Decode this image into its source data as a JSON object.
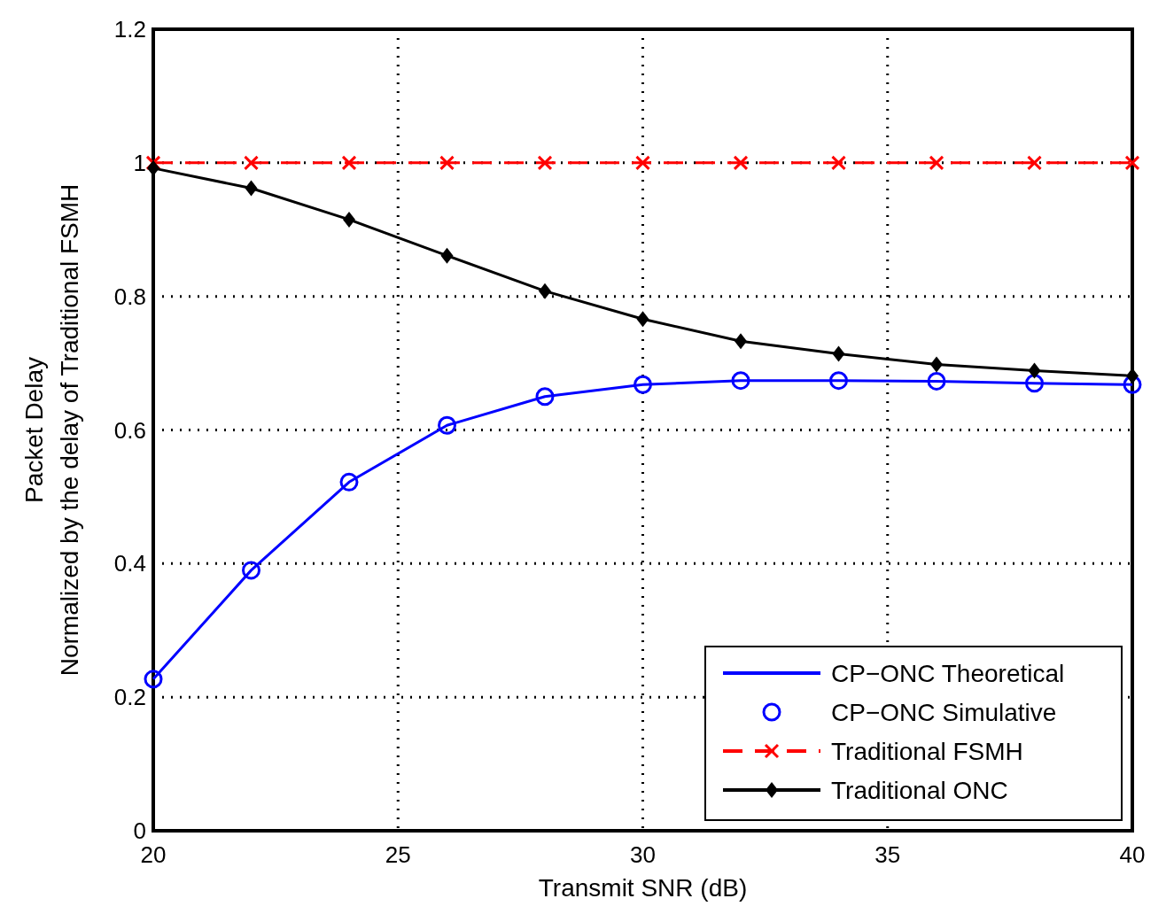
{
  "chart_data": {
    "type": "line",
    "xlabel": "Transmit SNR (dB)",
    "ylabel": "Packet Delay\nNormalized by the delay of Traditional FSMH",
    "x": [
      20,
      22,
      24,
      26,
      28,
      30,
      32,
      34,
      36,
      38,
      40
    ],
    "xlim": [
      20,
      40
    ],
    "xticks": [
      20,
      25,
      30,
      35,
      40
    ],
    "ylim": [
      0,
      1.2
    ],
    "yticks": [
      0,
      0.2,
      0.4,
      0.6,
      0.8,
      1,
      1.2
    ],
    "grid": true,
    "legend": "bottom right",
    "series": [
      {
        "name": "CP−ONC Theoretical",
        "color": "#0000ff",
        "marker": "none",
        "line_style": "solid",
        "values": [
          0.227,
          0.39,
          0.522,
          0.607,
          0.65,
          0.668,
          0.674,
          0.674,
          0.673,
          0.67,
          0.668
        ]
      },
      {
        "name": "CP−ONC Simulative",
        "type": "scatter",
        "color": "#0000ff",
        "marker": "circle",
        "values": [
          0.227,
          0.39,
          0.522,
          0.607,
          0.65,
          0.668,
          0.674,
          0.674,
          0.673,
          0.67,
          0.668
        ]
      },
      {
        "name": "Traditional FSMH",
        "color": "#ff0000",
        "marker": "cross",
        "line_style": "dashed",
        "values": [
          1,
          1,
          1,
          1,
          1,
          1,
          1,
          1,
          1,
          1,
          1
        ]
      },
      {
        "name": "Traditional ONC",
        "color": "#000000",
        "marker": "diamond",
        "line_style": "solid",
        "values": [
          0.992,
          0.962,
          0.915,
          0.861,
          0.808,
          0.766,
          0.733,
          0.714,
          0.698,
          0.689,
          0.681
        ]
      }
    ]
  }
}
